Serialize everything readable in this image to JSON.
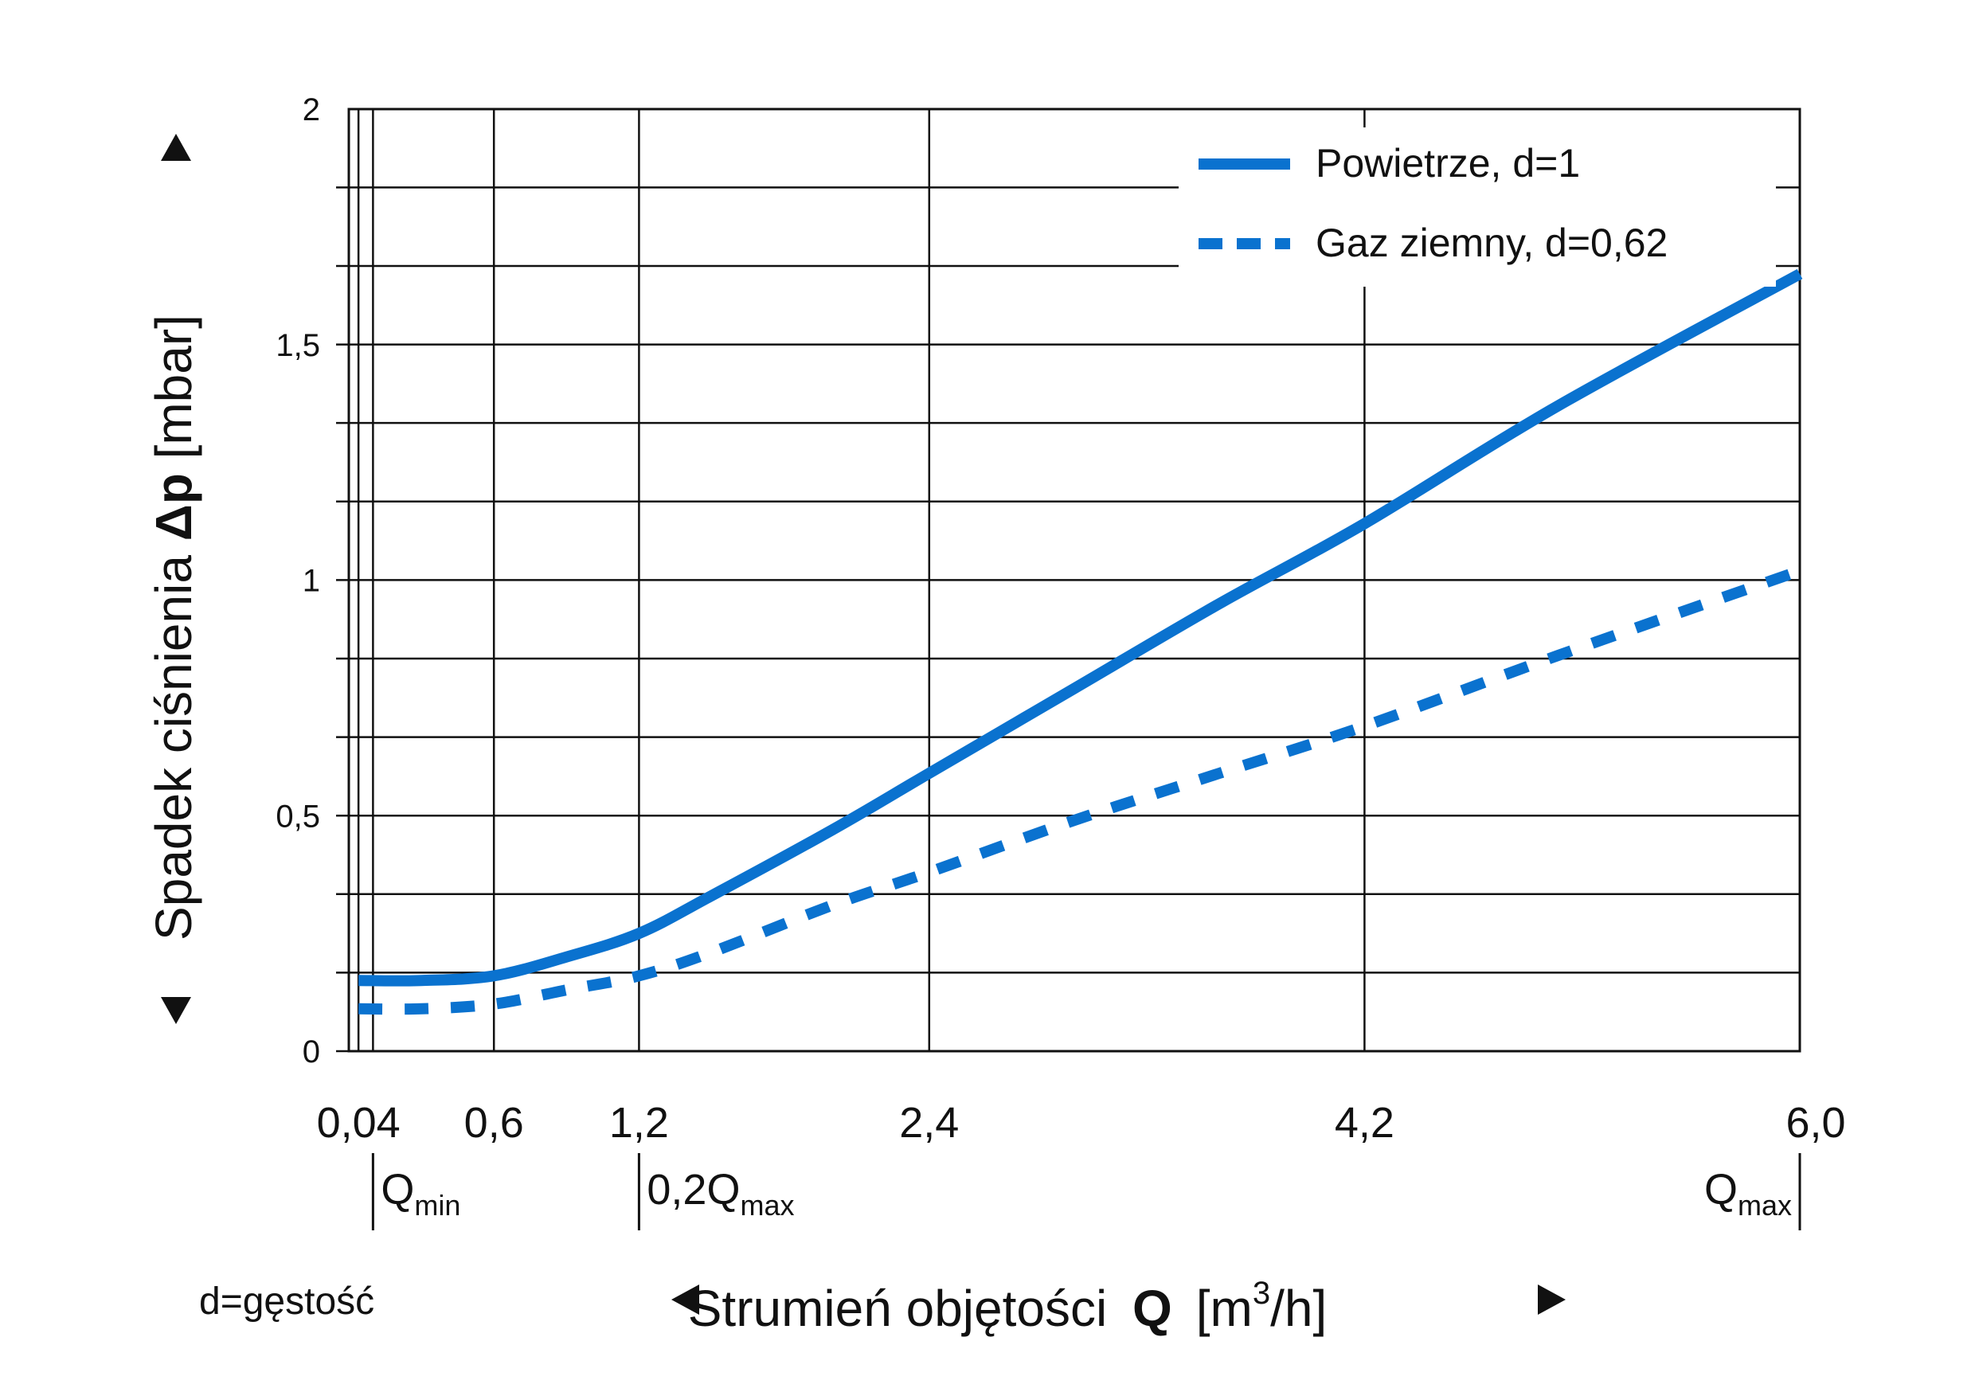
{
  "chart_data": {
    "type": "line",
    "ylabel": {
      "prefix": "Spadek ciśnienia ",
      "symbol": "Δp",
      "unit": " [mbar]"
    },
    "xlabel": {
      "prefix": "Strumień objętości ",
      "symbol": "Q",
      "unit_open": "[m",
      "unit_sup": "3",
      "unit_close": "/h]"
    },
    "note": "d=gęstość",
    "xlim": [
      0,
      6.0
    ],
    "ylim": [
      0,
      2
    ],
    "x_ticks": [
      {
        "value": 0.04,
        "label": "0,04"
      },
      {
        "value": 0.6,
        "label": "0,6"
      },
      {
        "value": 1.2,
        "label": "1,2"
      },
      {
        "value": 2.4,
        "label": "2,4"
      },
      {
        "value": 4.2,
        "label": "4,2"
      },
      {
        "value": 6.0,
        "label": "6,0"
      }
    ],
    "y_ticks": [
      {
        "value": 0,
        "label": "0"
      },
      {
        "value": 0.5,
        "label": "0,5"
      },
      {
        "value": 1,
        "label": "1"
      },
      {
        "value": 1.5,
        "label": "1,5"
      },
      {
        "value": 2,
        "label": "2"
      }
    ],
    "y_minor_step": 0.1667,
    "x_markers": [
      {
        "value": 0.1,
        "base": "Q",
        "sub": "min",
        "prefix": ""
      },
      {
        "value": 1.2,
        "base": "Q",
        "sub": "max",
        "prefix": "0,2"
      },
      {
        "value": 6.0,
        "base": "Q",
        "sub": "max",
        "prefix": ""
      }
    ],
    "grid": true,
    "legend_position": "top-right",
    "series": [
      {
        "name": "Powietrze, d=1",
        "style": "solid",
        "color": "#0a72cf",
        "x": [
          0.04,
          0.3,
          0.6,
          0.9,
          1.2,
          1.5,
          2.0,
          2.4,
          3.0,
          3.6,
          4.2,
          5.0,
          6.0
        ],
        "y": [
          0.15,
          0.15,
          0.16,
          0.2,
          0.25,
          0.33,
          0.47,
          0.59,
          0.77,
          0.95,
          1.12,
          1.37,
          1.65
        ]
      },
      {
        "name": "Gaz ziemny, d=0,62",
        "style": "dashed",
        "color": "#0a72cf",
        "x": [
          0.04,
          0.3,
          0.6,
          0.9,
          1.2,
          1.5,
          2.0,
          2.4,
          3.0,
          3.6,
          4.2,
          5.0,
          6.0
        ],
        "y": [
          0.09,
          0.09,
          0.1,
          0.13,
          0.16,
          0.21,
          0.31,
          0.38,
          0.49,
          0.59,
          0.69,
          0.84,
          1.02
        ]
      }
    ]
  }
}
